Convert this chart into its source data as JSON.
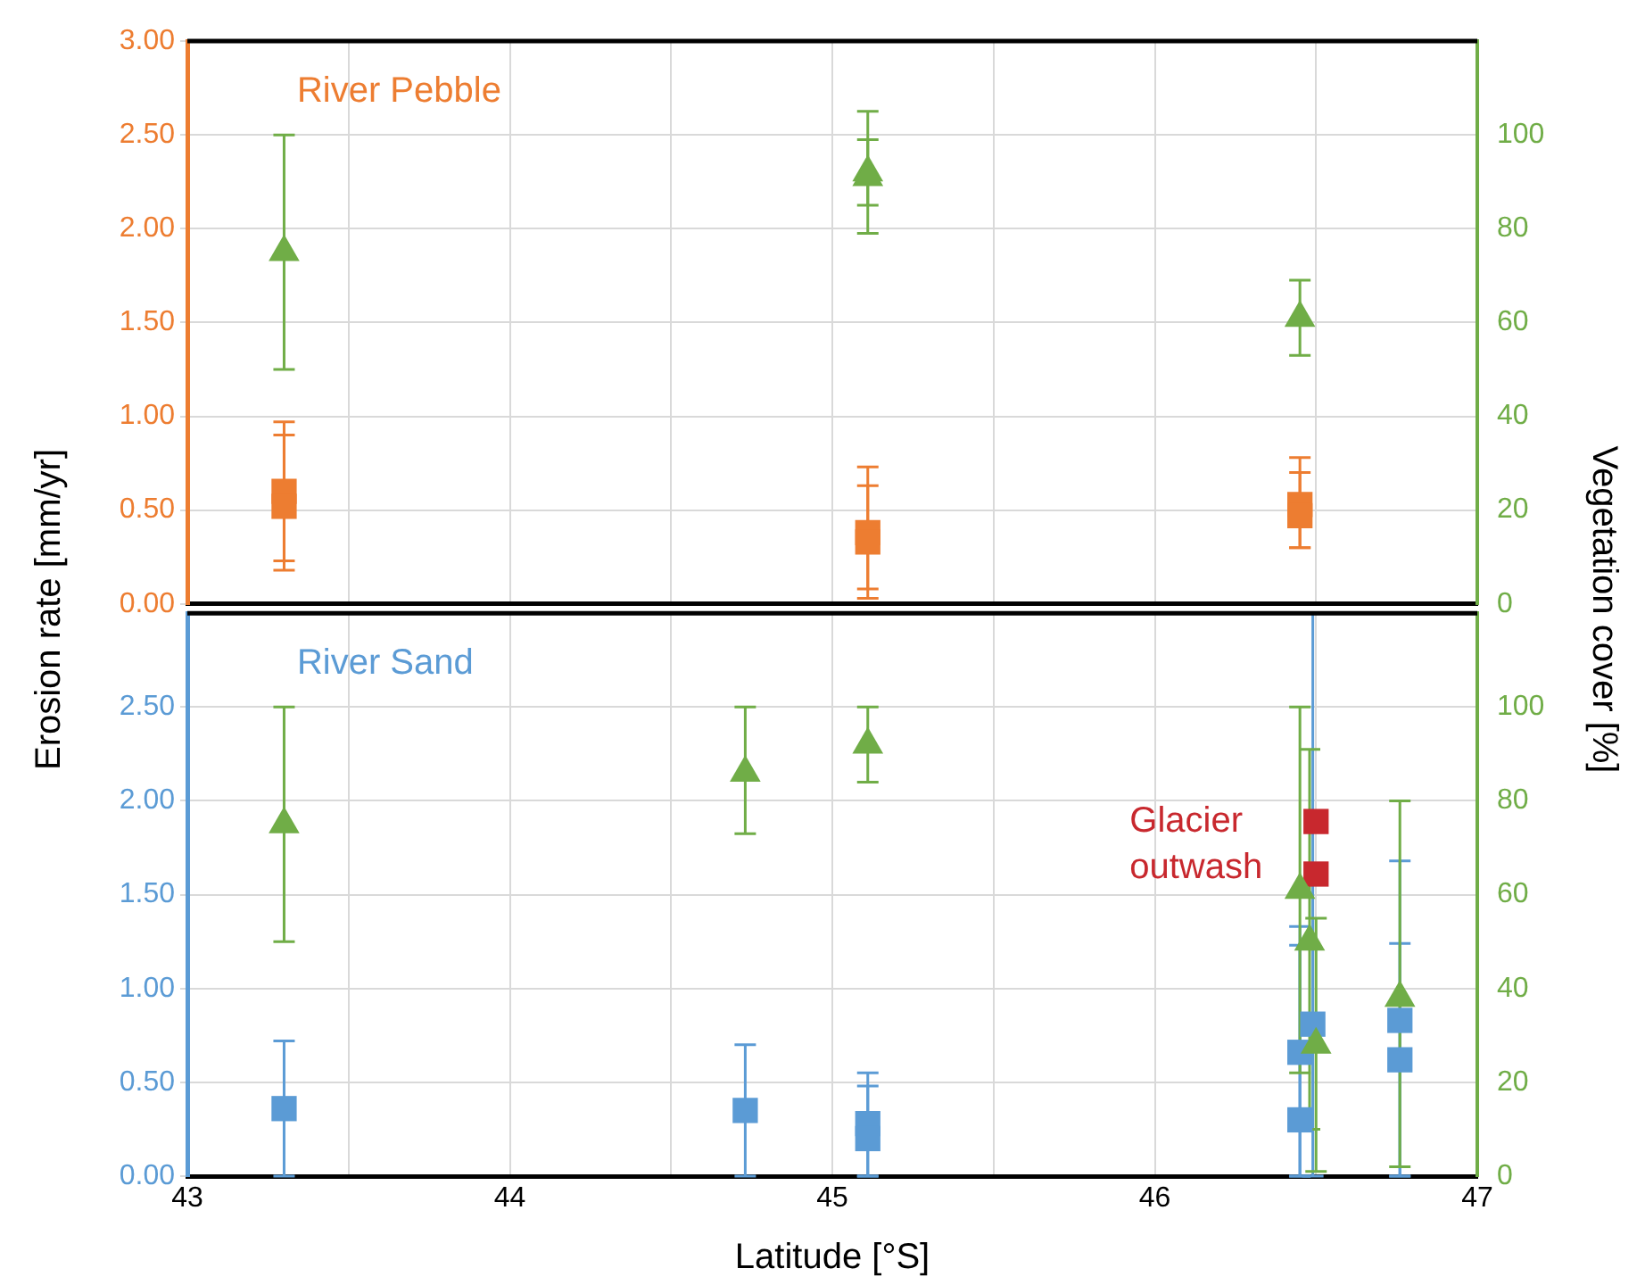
{
  "chart_data": [
    {
      "type": "scatter",
      "ylabel": "Erosion rate [mm/yr]",
      "y2label": "Vegetation cover [%]",
      "xlim": [
        43,
        47
      ],
      "xticks": [
        {
          "value": 43,
          "label": null
        },
        {
          "value": 43.5,
          "label": null
        },
        {
          "value": 44,
          "label": null
        },
        {
          "value": 44.5,
          "label": null
        },
        {
          "value": 45,
          "label": null
        },
        {
          "value": 45.5,
          "label": null
        },
        {
          "value": 46,
          "label": null
        },
        {
          "value": 46.5,
          "label": null
        },
        {
          "value": 47,
          "label": null
        }
      ],
      "ylim": [
        0,
        3
      ],
      "yticks": [
        {
          "value": 0,
          "label": "0.00"
        },
        {
          "value": 0.5,
          "label": "0.50"
        },
        {
          "value": 1,
          "label": "1.00"
        },
        {
          "value": 1.5,
          "label": "1.50"
        },
        {
          "value": 2,
          "label": "2.00"
        },
        {
          "value": 2.5,
          "label": "2.50"
        },
        {
          "value": 3,
          "label": "3.00"
        }
      ],
      "y2lim": [
        0,
        120
      ],
      "y2ticks": [
        0,
        20,
        40,
        60,
        80,
        100
      ],
      "grid": true,
      "legend": false,
      "tick_labels": "y",
      "series": [
        {
          "name": "River Pebble",
          "color": "#ed7d31",
          "marker": "square",
          "x": [
            43.3,
            43.3,
            45.11,
            45.11,
            46.45,
            46.45
          ],
          "values": [
            0.6,
            0.52,
            0.38,
            0.33,
            0.53,
            0.47
          ],
          "errors": [
            [
              0.23,
              0.97
            ],
            [
              0.18,
              0.9
            ],
            [
              0.08,
              0.73
            ],
            [
              0.03,
              0.63
            ],
            [
              0.3,
              0.78
            ],
            [
              0.3,
              0.7
            ]
          ]
        },
        {
          "color": "#70ad47",
          "marker": "triangle",
          "axis": "y2",
          "x": [
            43.3,
            45.11,
            45.11,
            46.45
          ],
          "values": [
            75,
            92,
            91,
            61
          ],
          "errors": [
            [
              50,
              100
            ],
            [
              79,
              105
            ],
            [
              85,
              99
            ],
            [
              53,
              69
            ]
          ]
        }
      ]
    },
    {
      "type": "scatter",
      "xlabel": "Latitude [°S]",
      "xlim": [
        43,
        47
      ],
      "xticks": [
        43,
        {
          "value": 43.5,
          "label": null
        },
        44,
        {
          "value": 44.5,
          "label": null
        },
        45,
        {
          "value": 45.5,
          "label": null
        },
        46,
        {
          "value": 46.5,
          "label": null
        },
        47
      ],
      "ylim": [
        0,
        3
      ],
      "yticks": [
        {
          "value": 0,
          "label": "0.00"
        },
        {
          "value": 0.5,
          "label": "0.50"
        },
        {
          "value": 1,
          "label": "1.00"
        },
        {
          "value": 1.5,
          "label": "1.50"
        },
        {
          "value": 2,
          "label": "2.00"
        },
        {
          "value": 2.5,
          "label": "2.50"
        }
      ],
      "y2lim": [
        0,
        120
      ],
      "y2ticks": [
        0,
        20,
        40,
        60,
        80,
        100
      ],
      "grid": true,
      "legend": false,
      "series": [
        {
          "name": "River Sand",
          "color": "#5b9bd5",
          "marker": "square",
          "x": [
            43.3,
            44.73,
            45.11,
            45.11,
            46.45,
            46.45,
            46.49,
            46.76,
            46.76
          ],
          "values": [
            0.36,
            0.35,
            0.28,
            0.2,
            0.3,
            0.66,
            0.81,
            0.83,
            0.62
          ],
          "errors": [
            [
              0,
              0.72
            ],
            [
              0,
              0.7
            ],
            [
              0,
              0.55
            ],
            [
              0,
              0.48
            ],
            [
              0,
              1.23
            ],
            [
              0,
              1.33
            ],
            [
              0,
              3
            ],
            [
              0,
              1.68
            ],
            [
              0,
              1.24
            ]
          ]
        },
        {
          "name": "Glacier outwash",
          "color": "#c8282e",
          "marker": "square",
          "x": [
            46.5,
            46.5
          ],
          "values": [
            1.89,
            1.61
          ]
        },
        {
          "color": "#70ad47",
          "marker": "triangle",
          "axis": "y2",
          "x": [
            43.3,
            44.73,
            45.11,
            46.45,
            46.48,
            46.5,
            46.76
          ],
          "values": [
            75,
            86,
            92,
            61,
            50,
            28,
            38
          ],
          "errors": [
            [
              50,
              100
            ],
            [
              73,
              100
            ],
            [
              84,
              100
            ],
            [
              22,
              100
            ],
            [
              10,
              91
            ],
            [
              1,
              55
            ],
            [
              2,
              80
            ]
          ]
        }
      ]
    }
  ]
}
